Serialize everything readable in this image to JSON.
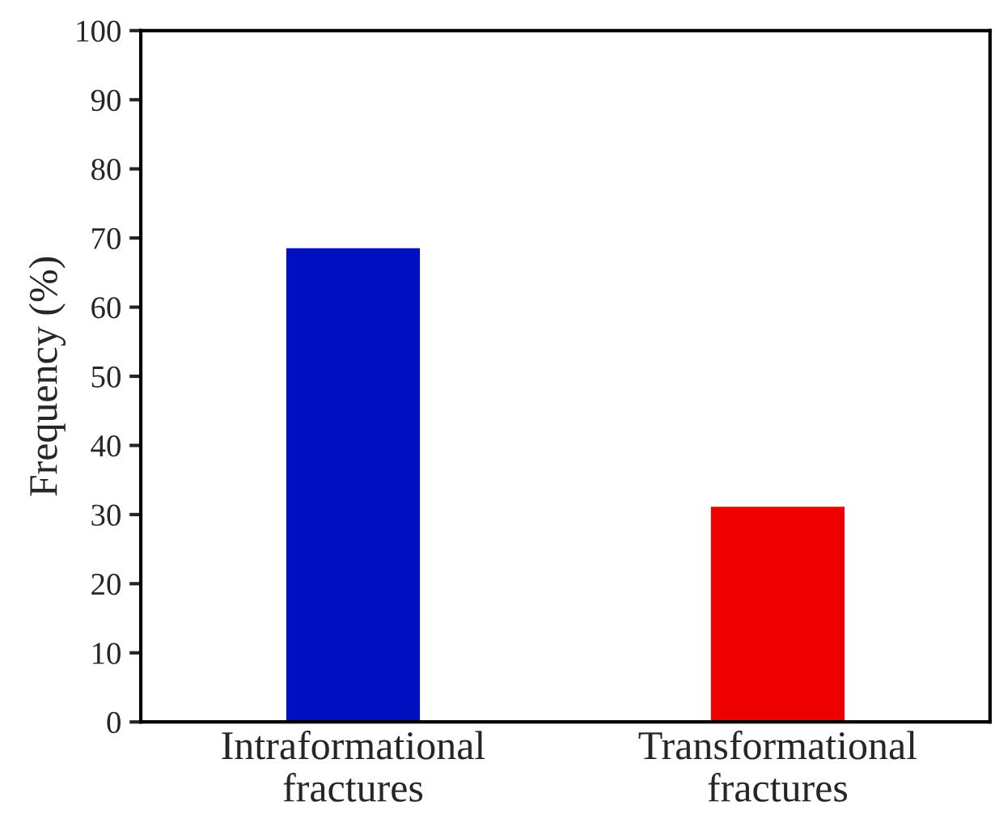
{
  "chart_data": {
    "type": "bar",
    "ylabel": "Frequency (%)",
    "categories": [
      "Intraformational\nfractures",
      "Transformational\nfractures"
    ],
    "values": [
      68.7,
      31.3
    ],
    "colors": [
      "#0010c0",
      "#ee0000"
    ],
    "ylim": [
      0,
      100
    ],
    "yticks": [
      0,
      10,
      20,
      30,
      40,
      50,
      60,
      70,
      80,
      90,
      100
    ],
    "grid": false
  }
}
